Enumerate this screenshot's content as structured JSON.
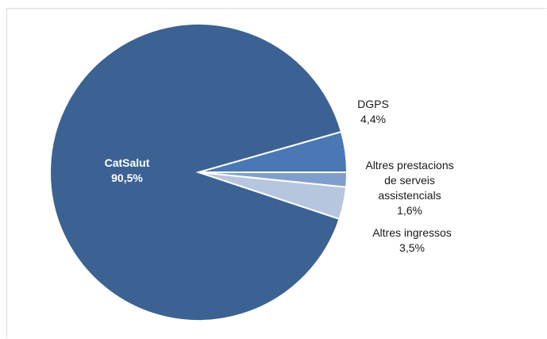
{
  "chart_data": {
    "type": "pie",
    "title": "",
    "slices": [
      {
        "label": "CatSalut",
        "value_text": "90,5%",
        "value": 90.5,
        "color": "#3b6293"
      },
      {
        "label": "DGPS",
        "value_text": "4,4%",
        "value": 4.4,
        "color": "#4a78b4"
      },
      {
        "label_lines": [
          "Altres prestacions",
          "de serveis",
          "assistencials"
        ],
        "value_text": "1,6%",
        "value": 1.6,
        "color": "#7f9fcb"
      },
      {
        "label": "Altres ingressos",
        "value_text": "3,5%",
        "value": 3.5,
        "color": "#b7c6df"
      }
    ],
    "colors": {
      "border": "#ffffff",
      "frame": "#d9d9d9"
    }
  }
}
